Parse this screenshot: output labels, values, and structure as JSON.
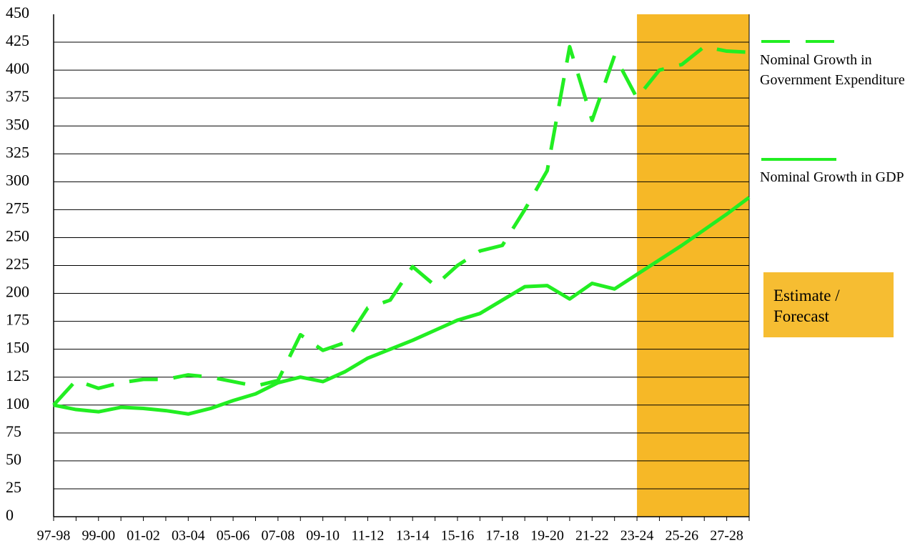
{
  "chart_data": {
    "type": "line",
    "categories": [
      "97-98",
      null,
      "99-00",
      null,
      "01-02",
      null,
      "03-04",
      null,
      "05-06",
      null,
      "07-08",
      null,
      "09-10",
      null,
      "11-12",
      null,
      "13-14",
      null,
      "15-16",
      null,
      "17-18",
      null,
      "19-20",
      null,
      "21-22",
      null,
      "23-24",
      null,
      "25-26",
      null,
      "27-28",
      null
    ],
    "series": [
      {
        "name": "Nominal Growth in Government Expenditure",
        "color": "#22ee22",
        "dashed": true,
        "values": [
          100,
          122,
          115,
          120,
          123,
          123,
          127,
          125,
          121,
          117,
          122,
          163,
          149,
          156,
          187,
          194,
          224,
          207,
          225,
          238,
          243,
          275,
          310,
          421,
          355,
          413,
          375,
          400,
          405,
          421,
          417,
          416
        ]
      },
      {
        "name": "Nominal Growth in GDP",
        "color": "#22ee22",
        "dashed": false,
        "values": [
          100,
          96,
          94,
          98,
          97,
          95,
          92,
          97,
          104,
          110,
          120,
          125,
          121,
          130,
          142,
          150,
          158,
          167,
          176,
          182,
          194,
          206,
          207,
          195,
          209,
          204,
          217,
          230,
          243,
          257,
          271,
          286
        ]
      }
    ],
    "ylim": [
      0,
      450
    ],
    "yticks": [
      0,
      25,
      50,
      75,
      100,
      125,
      150,
      175,
      200,
      225,
      250,
      275,
      300,
      325,
      350,
      375,
      400,
      425,
      450
    ],
    "grid": true,
    "shaded_from": "23-24",
    "shade_color": "#f6b827",
    "annotation": "Estimate / Forecast"
  }
}
